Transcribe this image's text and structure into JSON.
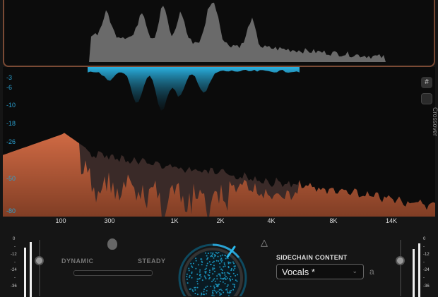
{
  "colors": {
    "accent": "#2aa0d0",
    "orange": "#c0603a",
    "border": "#7a4a35"
  },
  "db_scale": [
    "-3",
    "-6",
    "-10",
    "-18",
    "-26",
    "-50",
    "-80"
  ],
  "freq_scale": [
    "100",
    "300",
    "1K",
    "2K",
    "4K",
    "8K",
    "14K"
  ],
  "side": {
    "grid_icon": "grid-icon",
    "crossover_label": "Crossover"
  },
  "meters": {
    "left_scale": [
      "0",
      "-",
      "-12",
      "-",
      "-24",
      "-",
      "-36"
    ],
    "right_scale": [
      "0",
      "-",
      "-12",
      "-",
      "-24",
      "-",
      "-36"
    ]
  },
  "controls": {
    "dynamic": "DYNAMIC",
    "steady": "STEADY",
    "sidechain_label": "SIDECHAIN CONTENT",
    "sidechain_value": "Vocals *"
  }
}
